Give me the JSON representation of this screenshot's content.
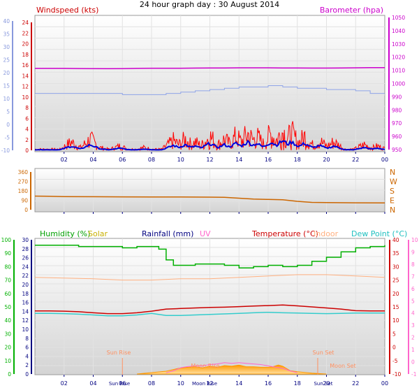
{
  "title": "24 hour graph day : 30 August 2014",
  "colors": {
    "panel_top": "#ffffff",
    "panel_bottom": "#d8d8d8",
    "wind_avg": "#0000dd",
    "wind_gust": "#ff0000",
    "baro": "#cc00cc",
    "baro_axis": "#cc00cc",
    "wind_axis_left": "#8899dd",
    "dir_line": "#cc6600",
    "humidity": "#00b000",
    "solar": "#ffb030",
    "rain": "#000080",
    "uv": "#ff66cc",
    "temp": "#cc0000",
    "indoor": "#ffb080",
    "dew": "#33cccc"
  },
  "time_ticks": [
    "02",
    "04",
    "06",
    "08",
    "10",
    "12",
    "14",
    "16",
    "18",
    "20",
    "22",
    "00"
  ],
  "chart_data": [
    {
      "type": "line",
      "name": "wind-and-pressure",
      "ylabel_left": "Windspeed (kts)",
      "ylabel_right": "Barometer (hpa)",
      "left_ticks_red": [
        "24",
        "22",
        "20",
        "18",
        "16",
        "14",
        "12",
        "10",
        "8",
        "6",
        "4",
        "2",
        "0"
      ],
      "left_ticks_blue": [
        "40",
        "35",
        "30",
        "25",
        "20",
        "15",
        "10",
        "5",
        "0",
        "-5",
        "-10"
      ],
      "right_ticks": [
        "1050",
        "1040",
        "1030",
        "1020",
        "1010",
        "1000",
        "990",
        "980",
        "970",
        "960",
        "950"
      ],
      "ylim_windspeed": [
        0,
        24
      ],
      "ylim_baro": [
        950,
        1050
      ],
      "ylim_blue_axis": [
        -10,
        40
      ],
      "series": [
        {
          "name": "Barometer",
          "axis": "baro",
          "x": [
            0,
            1,
            2,
            3,
            4,
            5,
            6,
            7,
            8,
            9,
            10,
            11,
            12,
            13,
            14,
            15,
            16,
            17,
            18,
            19,
            20,
            21,
            22,
            23,
            24
          ],
          "values": [
            1011.5,
            1011.5,
            1011.5,
            1011.4,
            1011.3,
            1011.2,
            1011.3,
            1011.5,
            1011.6,
            1011.6,
            1011.6,
            1011.7,
            1011.8,
            1011.8,
            1011.9,
            1011.9,
            1011.9,
            1011.8,
            1011.8,
            1011.7,
            1011.7,
            1011.8,
            1011.9,
            1012.0,
            1012.0
          ]
        },
        {
          "name": "Blue axis trace",
          "axis": "blue",
          "x": [
            0,
            1,
            2,
            3,
            4,
            5,
            6,
            7,
            8,
            9,
            10,
            11,
            12,
            13,
            14,
            15,
            16,
            17,
            18,
            19,
            20,
            21,
            22,
            23,
            24
          ],
          "values": [
            12,
            12,
            12,
            12,
            12,
            12,
            11.5,
            11.5,
            11.5,
            12,
            12.5,
            13,
            13.5,
            14,
            14.5,
            14.5,
            15,
            14.5,
            14,
            14,
            13.5,
            13.5,
            13,
            12,
            12
          ]
        }
      ],
      "gust_peaks": [
        {
          "x": 2.5,
          "v": 3
        },
        {
          "x": 3.8,
          "v": 4
        },
        {
          "x": 4.5,
          "v": 1
        },
        {
          "x": 5.8,
          "v": 1.5
        },
        {
          "x": 7.5,
          "v": 1
        },
        {
          "x": 9.5,
          "v": 3.5
        },
        {
          "x": 10.3,
          "v": 4
        },
        {
          "x": 11,
          "v": 3
        },
        {
          "x": 12,
          "v": 5
        },
        {
          "x": 13,
          "v": 4
        },
        {
          "x": 13.8,
          "v": 5
        },
        {
          "x": 14.6,
          "v": 6
        },
        {
          "x": 15.2,
          "v": 5
        },
        {
          "x": 16.2,
          "v": 6
        },
        {
          "x": 17,
          "v": 7
        },
        {
          "x": 17.6,
          "v": 6
        },
        {
          "x": 18.5,
          "v": 5
        },
        {
          "x": 19.5,
          "v": 3.5
        },
        {
          "x": 20.5,
          "v": 3
        },
        {
          "x": 22.6,
          "v": 2
        },
        {
          "x": 23.5,
          "v": 1.5
        }
      ]
    },
    {
      "type": "line",
      "name": "wind-direction",
      "left_ticks": [
        "360",
        "270",
        "180",
        "90",
        "0"
      ],
      "right_ticks": [
        "N",
        "W",
        "S",
        "E",
        "N"
      ],
      "ylim": [
        0,
        360
      ],
      "series": [
        {
          "name": "Direction",
          "x": [
            0,
            1,
            2,
            4,
            6,
            8,
            10,
            12,
            13,
            14,
            15,
            16,
            17,
            18,
            19,
            20,
            22,
            24
          ],
          "values": [
            130,
            128,
            125,
            124,
            123,
            122,
            122,
            120,
            118,
            110,
            102,
            98,
            95,
            80,
            70,
            68,
            66,
            65
          ]
        }
      ]
    },
    {
      "type": "line",
      "name": "temperature-humidity",
      "labels": {
        "humidity": "Humidity (%)",
        "solar": "Solar",
        "rain": "Rainfall (mm)",
        "uv": "UV",
        "temp": "Temperature (°C)",
        "indoor": "Indoor",
        "dew": "Dew Point (°C)"
      },
      "left_green_ticks": [
        "100",
        "90",
        "80",
        "70",
        "60",
        "50",
        "40",
        "30",
        "20",
        "10",
        "0"
      ],
      "left_blue_ticks": [
        "30",
        "28",
        "26",
        "24",
        "22",
        "20",
        "18",
        "16",
        "14",
        "12",
        "10",
        "8",
        "6",
        "4",
        "2",
        "0"
      ],
      "right_red_ticks": [
        "40",
        "35",
        "30",
        "25",
        "20",
        "15",
        "10",
        "5",
        "0",
        "-5",
        "-10"
      ],
      "right_pink_ticks": [
        "10",
        "9",
        "8",
        "7",
        "6",
        "5",
        "4",
        "3",
        "2",
        "1",
        "0",
        "-1"
      ],
      "ylim_humidity": [
        0,
        100
      ],
      "ylim_temp": [
        -10,
        40
      ],
      "series": [
        {
          "name": "Humidity",
          "x": [
            0,
            1,
            2,
            3,
            4,
            5,
            6,
            7,
            8,
            8.5,
            9,
            9.5,
            10,
            11,
            12,
            13,
            14,
            15,
            16,
            17,
            18,
            19,
            20,
            21,
            22,
            23,
            24
          ],
          "values": [
            96,
            96,
            96,
            95,
            95,
            95,
            94,
            95,
            95,
            93,
            85,
            81,
            81,
            82,
            82,
            81,
            79,
            80,
            81,
            80,
            81,
            84,
            87,
            91,
            94,
            95,
            96
          ]
        },
        {
          "name": "Temperature",
          "x": [
            0,
            1,
            2,
            3,
            4,
            5,
            6,
            7,
            8,
            9,
            10,
            11,
            12,
            13,
            14,
            15,
            16,
            17,
            18,
            19,
            20,
            21,
            22,
            23,
            24
          ],
          "values": [
            13.5,
            13.5,
            13.4,
            13.2,
            12.8,
            12.5,
            12.5,
            12.8,
            13.4,
            14.2,
            14.4,
            14.6,
            14.8,
            14.9,
            15.1,
            15.3,
            15.5,
            15.7,
            15.4,
            15.0,
            14.6,
            14.2,
            13.6,
            13.5,
            13.5
          ]
        },
        {
          "name": "Dew Point",
          "x": [
            0,
            1,
            2,
            3,
            4,
            5,
            6,
            7,
            8,
            9,
            10,
            11,
            12,
            13,
            14,
            15,
            16,
            17,
            18,
            19,
            20,
            21,
            22,
            23,
            24
          ],
          "values": [
            12.6,
            12.6,
            12.5,
            12.3,
            12.0,
            11.7,
            11.7,
            12.0,
            12.6,
            11.8,
            11.8,
            12.0,
            12.2,
            12.4,
            12.6,
            12.8,
            13.0,
            12.8,
            12.7,
            12.6,
            12.5,
            12.6,
            12.7,
            12.7,
            12.7
          ]
        },
        {
          "name": "Indoor",
          "x": [
            0,
            2,
            4,
            6,
            8,
            10,
            12,
            14,
            16,
            18,
            20,
            22,
            24
          ],
          "values": [
            72,
            71.5,
            71,
            70,
            70,
            71,
            71,
            72,
            73,
            74,
            74,
            73,
            72
          ]
        },
        {
          "name": "Solar",
          "x": [
            7,
            8,
            9,
            9.5,
            10,
            10.5,
            11,
            11.5,
            12,
            12.5,
            13,
            13.5,
            14,
            14.5,
            15,
            15.5,
            16,
            16.3,
            16.7,
            17,
            17.5,
            18,
            19,
            20
          ],
          "values": [
            0,
            0.5,
            1.0,
            1.6,
            2.2,
            2.4,
            2.6,
            2.2,
            2.8,
            2.4,
            3.0,
            2.8,
            3.2,
            2.6,
            2.6,
            2.4,
            2.4,
            2.6,
            3.2,
            2.8,
            1.2,
            0.8,
            0.3,
            0
          ]
        },
        {
          "name": "UV",
          "x": [
            9,
            9.5,
            10,
            10.5,
            11,
            11.5,
            12,
            12.5,
            13,
            13.5,
            14,
            14.5,
            15,
            15.5,
            16,
            16.5,
            17,
            17.5,
            18
          ],
          "values": [
            0.2,
            0.5,
            1.0,
            1.2,
            1.3,
            1.3,
            1.5,
            1.6,
            1.8,
            1.7,
            1.8,
            1.7,
            1.6,
            1.5,
            1.3,
            1.1,
            0.9,
            0.5,
            0.2
          ]
        }
      ],
      "annotations": {
        "sun_rise": "Sun Rise",
        "sun_set": "Sun Set",
        "moon_rise": "Moon Rise",
        "moon_set": "Moon Set",
        "sun_rise_bottom": "Sun Rise",
        "moon_rise_bottom": "Moon Rise",
        "sun_set_bottom": "Sun Set"
      }
    }
  ]
}
